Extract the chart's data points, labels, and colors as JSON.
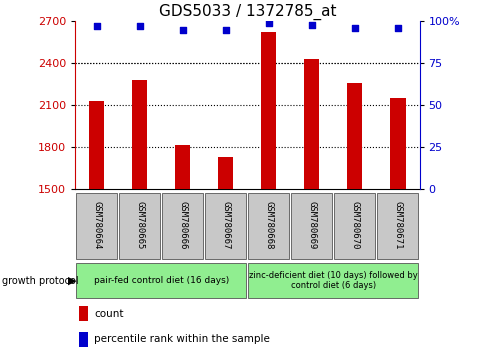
{
  "title": "GDS5033 / 1372785_at",
  "samples": [
    "GSM780664",
    "GSM780665",
    "GSM780666",
    "GSM780667",
    "GSM780668",
    "GSM780669",
    "GSM780670",
    "GSM780671"
  ],
  "bar_values": [
    2130,
    2280,
    1820,
    1730,
    2620,
    2430,
    2260,
    2150
  ],
  "percentile_values": [
    97,
    97,
    95,
    95,
    99,
    98,
    96,
    96
  ],
  "ylim_left": [
    1500,
    2700
  ],
  "ylim_right": [
    0,
    100
  ],
  "yticks_left": [
    1500,
    1800,
    2100,
    2400,
    2700
  ],
  "yticks_right": [
    0,
    25,
    50,
    75,
    100
  ],
  "bar_color": "#cc0000",
  "dot_color": "#0000cc",
  "bar_width": 0.35,
  "grid_yticks": [
    1800,
    2100,
    2400
  ],
  "group1_label": "pair-fed control diet (16 days)",
  "group2_label": "zinc-deficient diet (10 days) followed by\ncontrol diet (6 days)",
  "group_protocol_label": "growth protocol",
  "group1_indices": [
    0,
    1,
    2,
    3
  ],
  "group2_indices": [
    4,
    5,
    6,
    7
  ],
  "group1_color": "#90ee90",
  "group2_color": "#90ee90",
  "legend_count_label": "count",
  "legend_percentile_label": "percentile rank within the sample",
  "sample_box_color": "#c8c8c8",
  "title_fontsize": 11,
  "axis_label_fontsize": 8,
  "sample_fontsize": 6.5,
  "group_fontsize": 6.5,
  "legend_fontsize": 7.5
}
